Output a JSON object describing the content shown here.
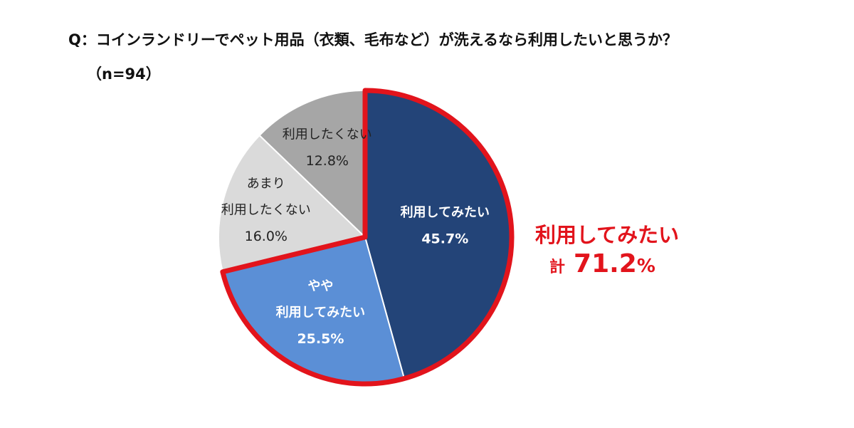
{
  "chart_data": {
    "type": "pie",
    "title": "Q：コインランドリーでペット用品（衣類、毛布など）が洗えるなら利用したいと思うか？",
    "subtitle": "（n=94）",
    "slices": [
      {
        "label_lines": [
          "利用してみたい"
        ],
        "value": 45.7,
        "value_label": "45.7%",
        "color": "#234478",
        "text_color": "#ffffff"
      },
      {
        "label_lines": [
          "やや",
          "利用してみたい"
        ],
        "value": 25.5,
        "value_label": "25.5%",
        "color": "#5b8fd6",
        "text_color": "#ffffff"
      },
      {
        "label_lines": [
          "あまり",
          "利用したくない"
        ],
        "value": 16.0,
        "value_label": "16.0%",
        "color": "#dadada",
        "text_color": "#222222"
      },
      {
        "label_lines": [
          "利用したくない"
        ],
        "value": 12.8,
        "value_label": "12.8%",
        "color": "#a6a6a6",
        "text_color": "#222222"
      }
    ],
    "start_angle_deg": 0,
    "direction": "clockwise",
    "highlight": {
      "slices": [
        0,
        1
      ],
      "outline_color": "#e2141c",
      "label": "利用してみたい",
      "prefix": "計",
      "value": "71.2",
      "unit": "%"
    }
  }
}
